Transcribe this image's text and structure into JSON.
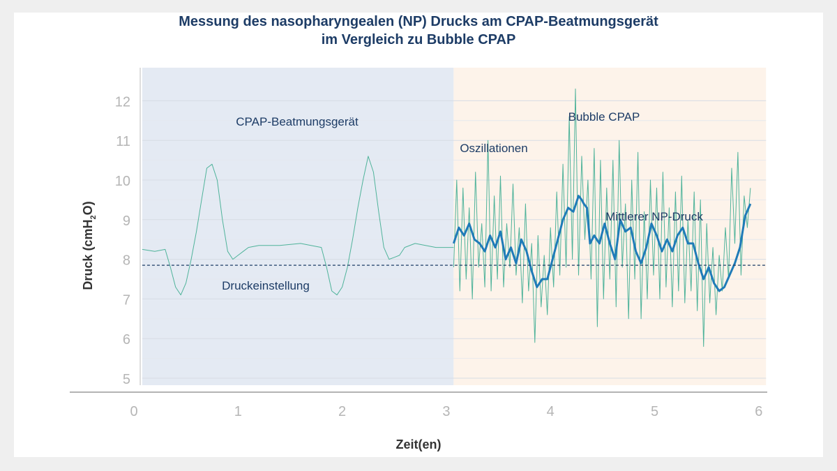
{
  "chart_data": {
    "type": "line",
    "title_line1": "Messung des nasopharyngealen (NP) Drucks am CPAP-Beatmungsgerät",
    "title_line2": "im Vergleich zu Bubble CPAP",
    "xlabel": "Zeit(en)",
    "ylabel_prefix": "Druck (cmH",
    "ylabel_sub": "2",
    "ylabel_suffix": "O)",
    "xlim": [
      0,
      6
    ],
    "ylim": [
      4.7,
      12.6
    ],
    "x_ticks": [
      "0",
      "1",
      "2",
      "3",
      "4",
      "5",
      "6"
    ],
    "y_ticks": [
      "5",
      "6",
      "7",
      "8",
      "9",
      "10",
      "11",
      "12"
    ],
    "grid": true,
    "pressure_setting": 7.85,
    "regions": [
      {
        "label": "CPAP-Beatmungsgerät",
        "x": [
          0.08,
          3.07
        ],
        "color": "#e4eaf3"
      },
      {
        "label": "Bubble CPAP",
        "x": [
          3.07,
          6.07
        ],
        "color": "#fdf3ea"
      }
    ],
    "annotations": {
      "pressure_setting_label": "Druckeinstellung",
      "oscillations_label": "Oszillationen",
      "mean_label": "Mittlerer NP-Druck"
    },
    "series": [
      {
        "name": "",
        "color": "#4fb39a",
        "x": [
          0.08,
          0.2,
          0.3,
          0.35,
          0.4,
          0.45,
          0.5,
          0.55,
          0.6,
          0.65,
          0.7,
          0.75,
          0.8,
          0.85,
          0.9,
          0.95,
          1.0,
          1.05,
          1.1,
          1.2,
          1.4,
          1.6,
          1.8,
          1.85,
          1.9,
          1.95,
          2.0,
          2.05,
          2.1,
          2.15,
          2.2,
          2.25,
          2.3,
          2.35,
          2.4,
          2.45,
          2.5,
          2.55,
          2.6,
          2.7,
          2.8,
          2.9,
          3.0,
          3.07
        ],
        "values": [
          8.25,
          8.2,
          8.25,
          7.8,
          7.3,
          7.1,
          7.4,
          8.0,
          8.7,
          9.5,
          10.3,
          10.4,
          10.0,
          9.0,
          8.2,
          8.0,
          8.1,
          8.2,
          8.3,
          8.35,
          8.35,
          8.4,
          8.3,
          7.8,
          7.2,
          7.1,
          7.3,
          7.8,
          8.5,
          9.3,
          10.0,
          10.6,
          10.2,
          9.2,
          8.3,
          8.0,
          8.05,
          8.1,
          8.3,
          8.4,
          8.35,
          8.3,
          8.3,
          8.3
        ]
      },
      {
        "name": "",
        "color": "#4fb39a",
        "x": [
          3.07,
          3.1,
          3.13,
          3.16,
          3.19,
          3.22,
          3.25,
          3.28,
          3.31,
          3.34,
          3.37,
          3.4,
          3.43,
          3.46,
          3.49,
          3.52,
          3.55,
          3.58,
          3.61,
          3.64,
          3.67,
          3.7,
          3.73,
          3.76,
          3.79,
          3.82,
          3.85,
          3.88,
          3.91,
          3.94,
          3.97,
          4.0,
          4.03,
          4.06,
          4.09,
          4.12,
          4.15,
          4.18,
          4.21,
          4.24,
          4.27,
          4.3,
          4.33,
          4.36,
          4.39,
          4.42,
          4.45,
          4.48,
          4.51,
          4.54,
          4.57,
          4.6,
          4.63,
          4.66,
          4.69,
          4.72,
          4.75,
          4.78,
          4.81,
          4.84,
          4.87,
          4.9,
          4.93,
          4.96,
          4.99,
          5.02,
          5.05,
          5.08,
          5.11,
          5.14,
          5.17,
          5.2,
          5.23,
          5.26,
          5.29,
          5.32,
          5.35,
          5.38,
          5.41,
          5.44,
          5.47,
          5.5,
          5.53,
          5.56,
          5.59,
          5.62,
          5.65,
          5.68,
          5.71,
          5.74,
          5.77,
          5.8,
          5.83,
          5.86,
          5.89,
          5.92
        ],
        "values": [
          7.8,
          10.0,
          7.2,
          9.8,
          7.5,
          9.3,
          7.0,
          10.2,
          7.8,
          8.9,
          7.3,
          11.0,
          7.2,
          9.6,
          7.5,
          10.1,
          7.3,
          8.9,
          7.8,
          9.9,
          7.6,
          8.8,
          6.9,
          9.4,
          7.2,
          8.4,
          5.9,
          8.6,
          6.8,
          8.1,
          6.6,
          8.8,
          7.3,
          9.7,
          7.6,
          10.4,
          7.8,
          11.6,
          8.0,
          12.3,
          7.6,
          10.6,
          8.5,
          10.0,
          7.5,
          10.8,
          6.3,
          10.5,
          7.0,
          9.8,
          7.5,
          10.5,
          6.8,
          11.0,
          7.8,
          9.4,
          6.5,
          10.0,
          7.5,
          10.7,
          6.5,
          9.2,
          7.0,
          10.0,
          7.6,
          9.8,
          7.0,
          10.2,
          7.3,
          9.3,
          6.8,
          9.7,
          7.2,
          10.1,
          6.9,
          9.0,
          7.2,
          9.7,
          6.7,
          9.5,
          5.8,
          8.9,
          6.9,
          8.3,
          6.6,
          8.1,
          7.2,
          8.8,
          7.5,
          10.3,
          8.4,
          10.7,
          7.6,
          9.6,
          8.8,
          9.8
        ]
      },
      {
        "name": "",
        "color": "#1f7bb8",
        "x": [
          3.07,
          3.12,
          3.17,
          3.22,
          3.27,
          3.32,
          3.37,
          3.42,
          3.47,
          3.52,
          3.57,
          3.62,
          3.67,
          3.72,
          3.77,
          3.82,
          3.87,
          3.92,
          3.97,
          4.02,
          4.07,
          4.12,
          4.17,
          4.22,
          4.27,
          4.3,
          4.32,
          4.35,
          4.38,
          4.42,
          4.47,
          4.52,
          4.57,
          4.62,
          4.67,
          4.72,
          4.77,
          4.82,
          4.87,
          4.92,
          4.97,
          5.02,
          5.07,
          5.12,
          5.17,
          5.22,
          5.27,
          5.32,
          5.37,
          5.42,
          5.47,
          5.52,
          5.57,
          5.62,
          5.67,
          5.72,
          5.77,
          5.82,
          5.87,
          5.92
        ],
        "values": [
          8.4,
          8.8,
          8.6,
          8.9,
          8.5,
          8.4,
          8.2,
          8.6,
          8.3,
          8.7,
          8.0,
          8.3,
          7.9,
          8.5,
          8.2,
          7.7,
          7.3,
          7.5,
          7.5,
          8.0,
          8.5,
          9.0,
          9.3,
          9.2,
          9.6,
          9.5,
          9.4,
          9.3,
          8.4,
          8.6,
          8.4,
          8.9,
          8.4,
          8.0,
          9.0,
          8.7,
          8.8,
          8.2,
          7.9,
          8.3,
          8.9,
          8.6,
          8.2,
          8.5,
          8.2,
          8.6,
          8.8,
          8.4,
          8.4,
          7.9,
          7.5,
          7.8,
          7.4,
          7.2,
          7.3,
          7.6,
          7.9,
          8.3,
          9.1,
          9.4
        ]
      }
    ]
  }
}
